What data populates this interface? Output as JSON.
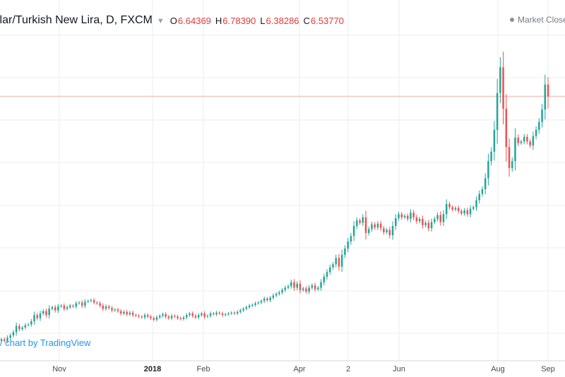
{
  "header": {
    "title": "llar/Turkish New Lira, D, FXCM",
    "ohlc": [
      {
        "key": "O",
        "value": "6.64369"
      },
      {
        "key": "H",
        "value": "6.78390"
      },
      {
        "key": "L",
        "value": "6.38286"
      },
      {
        "key": "C",
        "value": "6.53770"
      }
    ]
  },
  "market_status": "Market Closed",
  "attribution": "/ chart by TradingView",
  "colors": {
    "up": "#26a69a",
    "down": "#ef5350",
    "grid": "#eeeeee",
    "price_line": "#f3c6c4",
    "link": "#2196f3"
  },
  "chart_data": {
    "type": "candlestick",
    "x_ticks": [
      {
        "label": "Nov",
        "bold": false
      },
      {
        "label": "2018",
        "bold": true
      },
      {
        "label": "Feb",
        "bold": false
      },
      {
        "label": "Apr",
        "bold": false
      },
      {
        "label": "2",
        "bold": false
      },
      {
        "label": "Jun",
        "bold": false
      },
      {
        "label": "Aug",
        "bold": false
      },
      {
        "label": "Sep",
        "bold": false
      }
    ],
    "ylim": [
      3.2,
      7.5
    ],
    "last_close": 6.5377,
    "closes": [
      3.43,
      3.41,
      3.45,
      3.48,
      3.52,
      3.6,
      3.56,
      3.58,
      3.61,
      3.62,
      3.66,
      3.74,
      3.7,
      3.76,
      3.79,
      3.74,
      3.82,
      3.84,
      3.8,
      3.85,
      3.86,
      3.82,
      3.84,
      3.86,
      3.85,
      3.89,
      3.9,
      3.86,
      3.91,
      3.92,
      3.93,
      3.9,
      3.89,
      3.86,
      3.82,
      3.85,
      3.83,
      3.8,
      3.81,
      3.79,
      3.76,
      3.78,
      3.75,
      3.77,
      3.74,
      3.73,
      3.72,
      3.71,
      3.74,
      3.72,
      3.7,
      3.68,
      3.71,
      3.73,
      3.75,
      3.72,
      3.7,
      3.73,
      3.72,
      3.7,
      3.69,
      3.71,
      3.74,
      3.76,
      3.73,
      3.71,
      3.74,
      3.76,
      3.72,
      3.73,
      3.76,
      3.75,
      3.77,
      3.76,
      3.74,
      3.75,
      3.76,
      3.77,
      3.76,
      3.78,
      3.8,
      3.82,
      3.84,
      3.86,
      3.87,
      3.89,
      3.9,
      3.92,
      3.95,
      3.93,
      3.96,
      3.99,
      4.01,
      4.03,
      4.06,
      4.09,
      4.11,
      4.16,
      4.09,
      4.14,
      4.06,
      4.08,
      4.04,
      4.09,
      4.12,
      4.07,
      4.09,
      4.16,
      4.23,
      4.29,
      4.35,
      4.39,
      4.47,
      4.36,
      4.51,
      4.59,
      4.68,
      4.75,
      4.88,
      4.95,
      4.92,
      4.99,
      4.79,
      4.84,
      4.9,
      4.86,
      4.91,
      4.85,
      4.8,
      4.83,
      4.76,
      4.88,
      4.98,
      5.03,
      4.99,
      5.01,
      4.97,
      5.05,
      4.99,
      4.94,
      4.97,
      4.89,
      4.92,
      4.85,
      4.93,
      4.97,
      5.02,
      4.93,
      5.03,
      5.16,
      5.12,
      5.09,
      5.11,
      5.07,
      5.04,
      5.08,
      5.03,
      5.1,
      5.12,
      5.21,
      5.29,
      5.35,
      5.49,
      5.71,
      5.83,
      6.11,
      6.58,
      6.91,
      6.38,
      5.89,
      5.62,
      5.71,
      6.01,
      5.94,
      5.96,
      6.02,
      5.96,
      5.91,
      6.03,
      6.11,
      6.21,
      6.37,
      6.69,
      6.54
    ],
    "range_high": 7.24,
    "range_low": 3.38
  }
}
